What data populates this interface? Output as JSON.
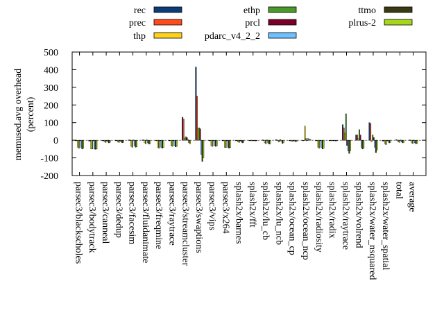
{
  "chart_data": {
    "type": "bar",
    "title": "",
    "xlabel": "",
    "ylabel": "memused.avg overhead\n(percent)",
    "ylim": [
      -200,
      500
    ],
    "yticks": [
      -200,
      -100,
      0,
      100,
      200,
      300,
      400,
      500
    ],
    "grid": false,
    "legend_position": "top",
    "categories": [
      "parsec3/blackscholes",
      "parsec3/bodytrack",
      "parsec3/canneal",
      "parsec3/dedup",
      "parsec3/facesim",
      "parsec3/fluidanimate",
      "parsec3/freqmine",
      "parsec3/raytrace",
      "parsec3/streamcluster",
      "parsec3/swaptions",
      "parsec3/vips",
      "parsec3/x264",
      "splash2x/barnes",
      "splash2x/fft",
      "splash2x/lu_cb",
      "splash2x/lu_ncb",
      "splash2x/ocean_cp",
      "splash2x/ocean_ncp",
      "splash2x/radiosity",
      "splash2x/radix",
      "splash2x/raytrace",
      "splash2x/volrend",
      "splash2x/water_nsquared",
      "splash2x/water_spatial",
      "total",
      "average"
    ],
    "series": [
      {
        "name": "rec",
        "color": "#0d3c78",
        "values": [
          -2,
          -5,
          -2,
          -2,
          2,
          2,
          -2,
          -2,
          130,
          415,
          -3,
          -3,
          -2,
          -1,
          2,
          3,
          -2,
          -2,
          -2,
          -2,
          88,
          30,
          100,
          -5,
          3,
          2
        ]
      },
      {
        "name": "prec",
        "color": "#ff4a1c",
        "values": [
          -3,
          -5,
          -3,
          -3,
          1,
          2,
          -3,
          -3,
          120,
          250,
          -3,
          -3,
          -3,
          -1,
          1,
          2,
          -2,
          -2,
          -3,
          -2,
          70,
          30,
          95,
          -5,
          2,
          1
        ]
      },
      {
        "name": "thp",
        "color": "#ffd21c",
        "values": [
          -40,
          -50,
          -10,
          -10,
          -35,
          -15,
          -40,
          -30,
          10,
          70,
          -32,
          -40,
          -10,
          -2,
          -15,
          -5,
          -5,
          80,
          -40,
          -2,
          40,
          10,
          -10,
          -20,
          -10,
          -15
        ]
      },
      {
        "name": "ethp",
        "color": "#4a9a2a",
        "values": [
          -45,
          -50,
          -12,
          -12,
          -40,
          -20,
          -45,
          -35,
          20,
          70,
          -35,
          -42,
          -12,
          -3,
          -20,
          -10,
          -6,
          10,
          -45,
          -3,
          150,
          60,
          30,
          -25,
          -12,
          -18
        ]
      },
      {
        "name": "prcl",
        "color": "#7a0028",
        "values": [
          -3,
          -3,
          -2,
          -3,
          2,
          2,
          -3,
          -3,
          15,
          65,
          -3,
          -3,
          -3,
          -1,
          2,
          3,
          -2,
          -2,
          -3,
          -2,
          -30,
          30,
          15,
          -3,
          2,
          1
        ]
      },
      {
        "name": "pdarc_v4_2_2",
        "color": "#6ec0ff",
        "values": [
          -40,
          -50,
          -10,
          -10,
          -30,
          -15,
          -40,
          -30,
          5,
          -80,
          -30,
          -40,
          -10,
          -2,
          -15,
          -5,
          -5,
          10,
          -40,
          -2,
          -60,
          -40,
          -40,
          -5,
          -10,
          -15
        ]
      },
      {
        "name": "ttmo",
        "color": "#3a3a12",
        "values": [
          -50,
          -52,
          -15,
          -14,
          -40,
          -22,
          -45,
          -38,
          -15,
          -120,
          -35,
          -45,
          -15,
          -4,
          -22,
          -18,
          -8,
          5,
          -50,
          -4,
          -75,
          -50,
          -70,
          -15,
          -15,
          -20
        ]
      },
      {
        "name": "plrus-2",
        "color": "#a6d61a",
        "values": [
          -45,
          -50,
          -12,
          -12,
          -38,
          -20,
          -42,
          -35,
          -20,
          -100,
          -32,
          -42,
          -12,
          -3,
          -20,
          -15,
          -6,
          5,
          -45,
          -3,
          -60,
          -45,
          -55,
          -12,
          -12,
          -18
        ]
      }
    ]
  }
}
